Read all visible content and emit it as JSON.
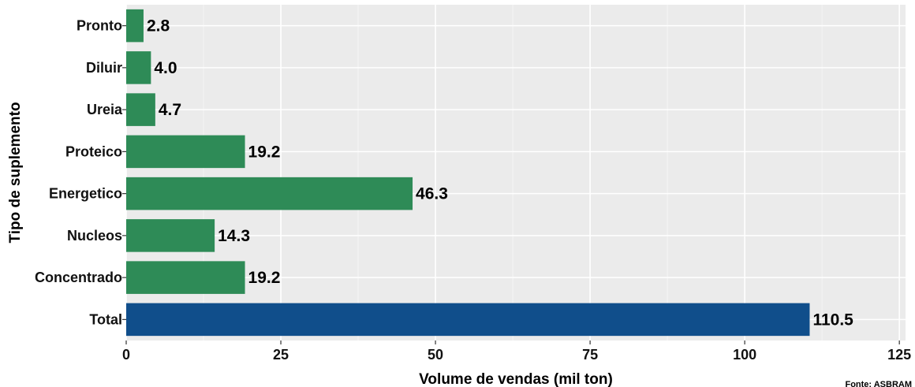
{
  "chart_data": {
    "type": "bar",
    "orientation": "horizontal",
    "categories": [
      "Pronto",
      "Diluir",
      "Ureia",
      "Proteico",
      "Energetico",
      "Nucleos",
      "Concentrado",
      "Total"
    ],
    "values": [
      2.8,
      4.0,
      4.7,
      19.2,
      46.3,
      14.3,
      19.2,
      110.5
    ],
    "value_labels": [
      "2.8",
      "4.0",
      "4.7",
      "19.2",
      "46.3",
      "14.3",
      "19.2",
      "110.5"
    ],
    "bar_colors": [
      "#2e8b57",
      "#2e8b57",
      "#2e8b57",
      "#2e8b57",
      "#2e8b57",
      "#2e8b57",
      "#2e8b57",
      "#104e8b"
    ],
    "xlabel": "Volume de vendas (mil ton)",
    "ylabel": "Tipo de suplemento",
    "xlim": [
      0,
      126
    ],
    "xticks": [
      0,
      25,
      50,
      75,
      100,
      125
    ],
    "grid": true,
    "legend": "none",
    "source_note": "Fonte: ASBRAM"
  },
  "colors": {
    "panel_background": "#ebebeb",
    "grid_major": "#ffffff",
    "grid_minor": "#f5f5f5"
  }
}
